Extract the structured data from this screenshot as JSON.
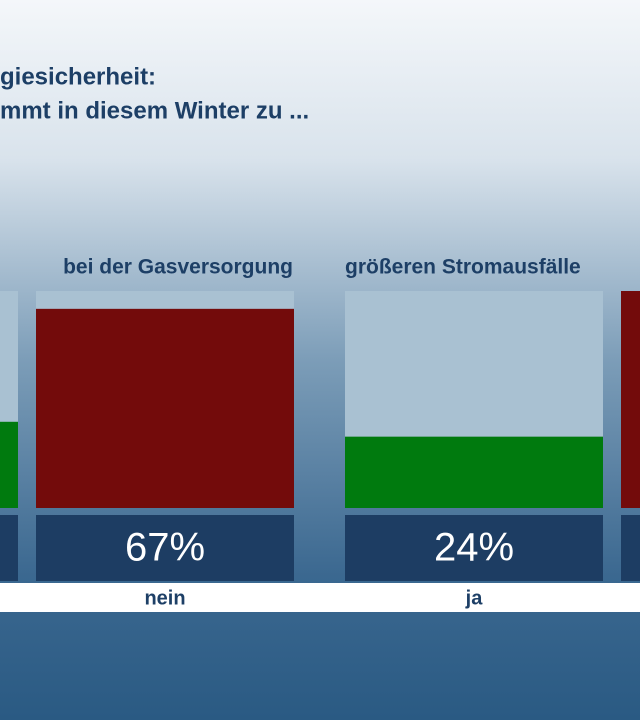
{
  "chart_data": {
    "type": "bar",
    "title": "giesicherheit:",
    "subtitle": "mmt in diesem Winter zu ...",
    "groups": [
      {
        "label": "bei der Gasversorgung"
      },
      {
        "label": "größeren Stromausfälle"
      }
    ],
    "categories": [
      null,
      "nein",
      "ja",
      null
    ],
    "values": [
      29,
      67,
      24,
      73
    ],
    "value_labels": [
      null,
      "67%",
      "24%",
      null
    ],
    "colors": [
      "#007a0e",
      "#730b0b",
      "#007a0e",
      "#730b0b"
    ],
    "ylim": [
      0,
      73
    ]
  }
}
